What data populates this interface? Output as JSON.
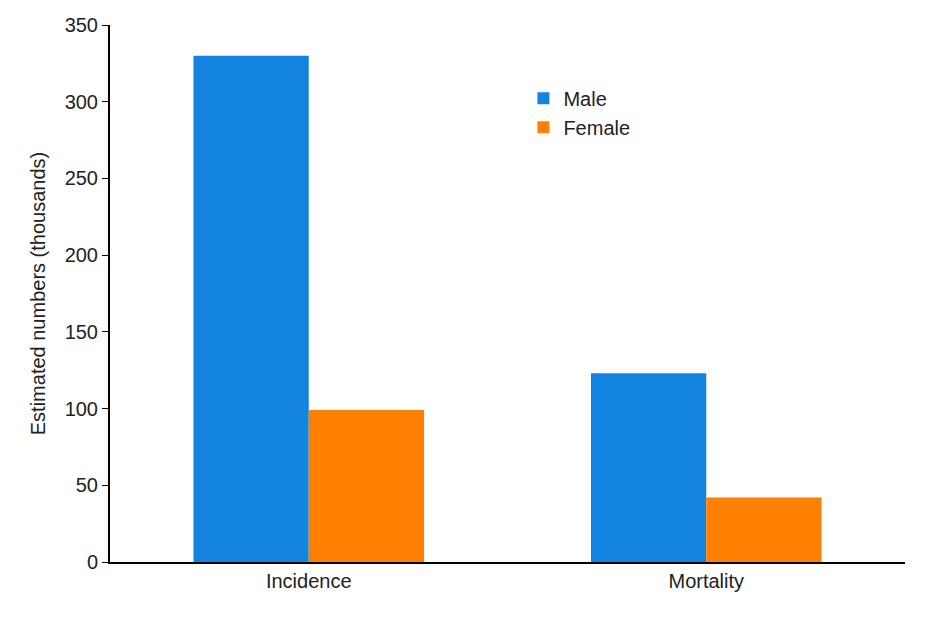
{
  "chart_data": {
    "type": "bar",
    "y_label": "Estimated numbers (thousands)",
    "categories": [
      "Incidence",
      "Mortality"
    ],
    "series": [
      {
        "name": "Male",
        "color": "#1283e0",
        "values": [
          330,
          123
        ]
      },
      {
        "name": "Female",
        "color": "#ff8000",
        "values": [
          99,
          42
        ]
      }
    ],
    "ylim": [
      0,
      350
    ],
    "yticks": [
      0,
      50,
      100,
      150,
      200,
      250,
      300,
      350
    ],
    "grid": false,
    "legend": "upper center"
  }
}
